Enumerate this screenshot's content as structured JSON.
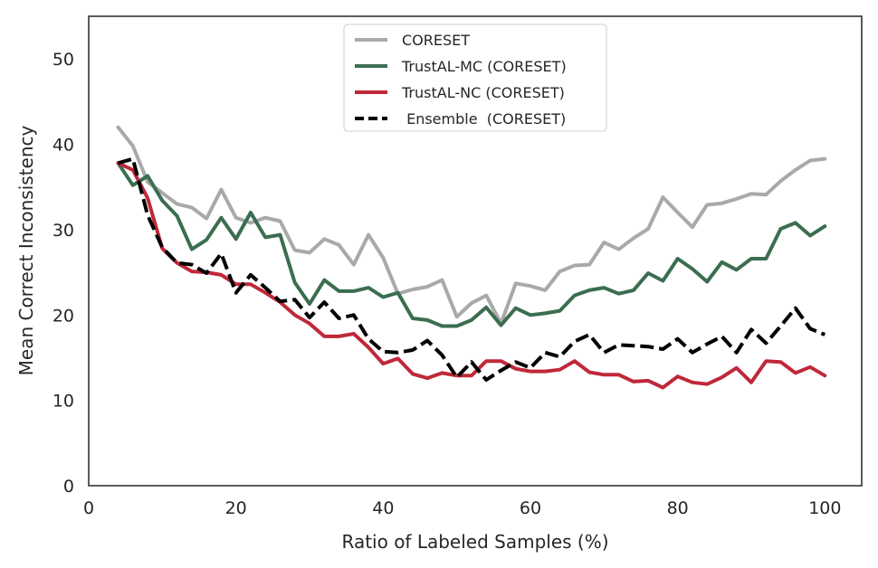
{
  "chart_data": {
    "type": "line",
    "title": "",
    "xlabel": "Ratio of Labeled Samples (%)",
    "ylabel": "Mean Correct Inconsistency",
    "xlim": [
      0,
      105
    ],
    "ylim": [
      0,
      55
    ],
    "xticks": [
      0,
      20,
      40,
      60,
      80,
      100
    ],
    "yticks": [
      0,
      10,
      20,
      30,
      40,
      50
    ],
    "grid": false,
    "legend_position": "top-center",
    "x": [
      4,
      6,
      8,
      10,
      12,
      14,
      16,
      18,
      20,
      22,
      24,
      26,
      28,
      30,
      32,
      34,
      36,
      38,
      40,
      42,
      44,
      46,
      48,
      50,
      52,
      54,
      56,
      58,
      60,
      62,
      64,
      66,
      68,
      70,
      72,
      74,
      76,
      78,
      80,
      82,
      84,
      86,
      88,
      90,
      92,
      94,
      96,
      98,
      100
    ],
    "series": [
      {
        "name": "CORESET",
        "color": "#a9a9a9",
        "dash": "solid",
        "values": [
          42.0,
          39.8,
          35.6,
          34.3,
          33.0,
          32.6,
          31.3,
          34.7,
          31.4,
          30.8,
          31.4,
          31.0,
          27.6,
          27.3,
          28.9,
          28.2,
          25.9,
          29.4,
          26.7,
          22.5,
          23.0,
          23.3,
          24.1,
          19.8,
          21.4,
          22.3,
          19.0,
          23.7,
          23.4,
          22.9,
          25.1,
          25.8,
          25.9,
          28.5,
          27.7,
          29.0,
          30.1,
          33.8,
          32.0,
          30.3,
          32.9,
          33.1,
          33.6,
          34.2,
          34.1,
          35.7,
          37.0,
          38.1,
          38.3
        ]
      },
      {
        "name": "TrustAL-MC (CORESET)",
        "color": "#3b6e50",
        "dash": "solid",
        "values": [
          37.8,
          35.2,
          36.3,
          33.4,
          31.6,
          27.7,
          28.8,
          31.4,
          28.9,
          32.0,
          29.1,
          29.4,
          23.8,
          21.3,
          24.1,
          22.8,
          22.8,
          23.2,
          22.1,
          22.6,
          19.6,
          19.4,
          18.7,
          18.7,
          19.4,
          20.9,
          18.8,
          20.8,
          20.0,
          20.2,
          20.5,
          22.3,
          22.9,
          23.2,
          22.5,
          22.9,
          24.9,
          24.0,
          26.6,
          25.4,
          23.9,
          26.2,
          25.3,
          26.6,
          26.6,
          30.1,
          30.8,
          29.3,
          30.4
        ]
      },
      {
        "name": "TrustAL-NC (CORESET)",
        "color": "#c0283a",
        "dash": "solid",
        "values": [
          37.8,
          37.0,
          33.7,
          27.8,
          26.1,
          25.1,
          25.0,
          24.7,
          23.6,
          23.6,
          22.6,
          21.5,
          20.0,
          19.0,
          17.5,
          17.5,
          17.8,
          16.2,
          14.3,
          14.9,
          13.1,
          12.6,
          13.2,
          12.9,
          12.9,
          14.6,
          14.6,
          13.7,
          13.4,
          13.4,
          13.6,
          14.6,
          13.3,
          13.0,
          13.0,
          12.2,
          12.3,
          11.5,
          12.8,
          12.1,
          11.9,
          12.7,
          13.8,
          12.1,
          14.6,
          14.5,
          13.2,
          13.9,
          12.9
        ]
      },
      {
        "name": " Ensemble  (CORESET)",
        "color": "#000000",
        "dash": "dashed",
        "values": [
          37.8,
          38.3,
          31.7,
          27.9,
          26.1,
          25.9,
          24.9,
          27.2,
          22.6,
          24.7,
          23.2,
          21.6,
          21.8,
          19.7,
          21.5,
          19.6,
          20.0,
          17.2,
          15.7,
          15.6,
          15.9,
          17.0,
          15.3,
          12.7,
          14.5,
          12.4,
          13.5,
          14.5,
          13.8,
          15.6,
          15.1,
          16.9,
          17.7,
          15.6,
          16.5,
          16.4,
          16.3,
          16.0,
          17.2,
          15.6,
          16.6,
          17.5,
          15.6,
          18.3,
          16.7,
          18.7,
          20.8,
          18.4,
          17.7
        ]
      }
    ]
  }
}
